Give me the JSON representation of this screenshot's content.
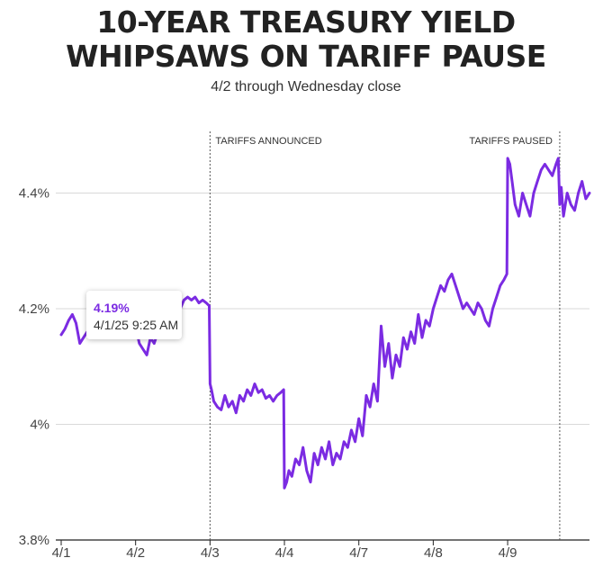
{
  "header": {
    "title_line1": "10-YEAR TREASURY YIELD",
    "title_line2": "WHIPSAWS ON TARIFF PAUSE",
    "subtitle": "4/2 through Wednesday close"
  },
  "tooltip": {
    "value": "4.19%",
    "timestamp": "4/1/25 9:25 AM"
  },
  "colors": {
    "line": "#7b2be2",
    "grid": "#d9d9d9",
    "annotation": "#555555"
  },
  "chart_data": {
    "type": "line",
    "title": "10-YEAR TREASURY YIELD WHIPSAWS ON TARIFF PAUSE",
    "subtitle": "4/2 through Wednesday close",
    "x_tick_labels": [
      "4/1",
      "4/2",
      "4/3",
      "4/4",
      "4/7",
      "4/8",
      "4/9"
    ],
    "x_session_index": [
      0,
      1,
      2,
      3,
      4,
      5,
      6
    ],
    "xlim": [
      0,
      7.1
    ],
    "y_tick_labels": [
      "3.8%",
      "4%",
      "4.2%",
      "4.4%"
    ],
    "y_ticks": [
      3.8,
      4.0,
      4.2,
      4.4
    ],
    "ylim": [
      3.8,
      4.6
    ],
    "grid": "horizontal",
    "annotations": [
      {
        "label": "TARIFFS ANNOUNCED",
        "x": 2.0
      },
      {
        "label": "TARIFFS PAUSED",
        "x": 6.7
      }
    ],
    "series": [
      {
        "name": "",
        "x": [
          0,
          0.05,
          0.1,
          0.15,
          0.2,
          0.25,
          0.3,
          0.35,
          0.4,
          0.45,
          0.5,
          0.55,
          0.6,
          0.65,
          0.7,
          0.75,
          0.8,
          0.85,
          0.9,
          0.95,
          1.0,
          1.05,
          1.1,
          1.15,
          1.2,
          1.25,
          1.3,
          1.35,
          1.4,
          1.45,
          1.5,
          1.55,
          1.6,
          1.65,
          1.7,
          1.75,
          1.8,
          1.85,
          1.9,
          1.95,
          1.99,
          2.0,
          2.02,
          2.05,
          2.1,
          2.15,
          2.2,
          2.25,
          2.3,
          2.35,
          2.4,
          2.45,
          2.5,
          2.55,
          2.6,
          2.65,
          2.7,
          2.75,
          2.8,
          2.85,
          2.9,
          2.95,
          2.99,
          3.0,
          3.03,
          3.06,
          3.1,
          3.15,
          3.2,
          3.25,
          3.3,
          3.35,
          3.4,
          3.45,
          3.5,
          3.55,
          3.6,
          3.65,
          3.7,
          3.75,
          3.8,
          3.85,
          3.9,
          3.95,
          4.0,
          4.05,
          4.1,
          4.15,
          4.2,
          4.25,
          4.3,
          4.35,
          4.4,
          4.45,
          4.5,
          4.55,
          4.6,
          4.65,
          4.7,
          4.75,
          4.8,
          4.85,
          4.9,
          4.95,
          5.0,
          5.05,
          5.1,
          5.15,
          5.2,
          5.25,
          5.3,
          5.35,
          5.4,
          5.45,
          5.5,
          5.55,
          5.6,
          5.65,
          5.7,
          5.75,
          5.8,
          5.85,
          5.9,
          5.95,
          5.99,
          6.0,
          6.03,
          6.06,
          6.1,
          6.15,
          6.2,
          6.25,
          6.3,
          6.35,
          6.4,
          6.45,
          6.5,
          6.55,
          6.6,
          6.65,
          6.68,
          6.7,
          6.72,
          6.75,
          6.8,
          6.85,
          6.9,
          6.95,
          7.0,
          7.05,
          7.1
        ],
        "y": [
          4.155,
          4.165,
          4.18,
          4.19,
          4.175,
          4.14,
          4.15,
          4.16,
          4.155,
          4.175,
          4.165,
          4.17,
          4.18,
          4.175,
          4.19,
          4.2,
          4.195,
          4.205,
          4.2,
          4.19,
          4.17,
          4.14,
          4.13,
          4.12,
          4.15,
          4.14,
          4.16,
          4.17,
          4.175,
          4.19,
          4.2,
          4.21,
          4.2,
          4.215,
          4.22,
          4.215,
          4.22,
          4.21,
          4.215,
          4.21,
          4.205,
          4.07,
          4.06,
          4.04,
          4.03,
          4.025,
          4.05,
          4.03,
          4.04,
          4.02,
          4.05,
          4.04,
          4.06,
          4.05,
          4.07,
          4.055,
          4.06,
          4.045,
          4.05,
          4.04,
          4.05,
          4.055,
          4.06,
          3.89,
          3.9,
          3.92,
          3.91,
          3.94,
          3.93,
          3.96,
          3.92,
          3.9,
          3.95,
          3.93,
          3.96,
          3.94,
          3.97,
          3.93,
          3.95,
          3.94,
          3.97,
          3.96,
          3.99,
          3.97,
          4.01,
          3.98,
          4.05,
          4.03,
          4.07,
          4.04,
          4.17,
          4.1,
          4.14,
          4.08,
          4.12,
          4.1,
          4.15,
          4.13,
          4.16,
          4.14,
          4.19,
          4.15,
          4.18,
          4.17,
          4.2,
          4.22,
          4.24,
          4.23,
          4.25,
          4.26,
          4.24,
          4.22,
          4.2,
          4.21,
          4.2,
          4.19,
          4.21,
          4.2,
          4.18,
          4.17,
          4.2,
          4.22,
          4.24,
          4.25,
          4.26,
          4.46,
          4.45,
          4.42,
          4.38,
          4.36,
          4.4,
          4.38,
          4.36,
          4.4,
          4.42,
          4.44,
          4.45,
          4.44,
          4.43,
          4.45,
          4.46,
          4.38,
          4.41,
          4.36,
          4.4,
          4.38,
          4.37,
          4.4,
          4.42,
          4.39,
          4.4
        ]
      }
    ]
  }
}
